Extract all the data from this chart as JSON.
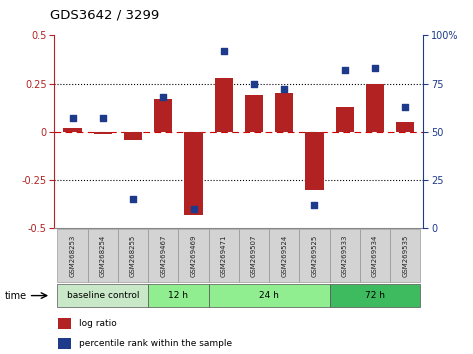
{
  "title": "GDS3642 / 3299",
  "samples": [
    "GSM268253",
    "GSM268254",
    "GSM268255",
    "GSM269467",
    "GSM269469",
    "GSM269471",
    "GSM269507",
    "GSM269524",
    "GSM269525",
    "GSM269533",
    "GSM269534",
    "GSM269535"
  ],
  "log_ratio": [
    0.02,
    -0.01,
    -0.04,
    0.17,
    -0.43,
    0.28,
    0.19,
    0.2,
    -0.3,
    0.13,
    0.25,
    0.05
  ],
  "percentile_rank": [
    57,
    57,
    15,
    68,
    10,
    92,
    75,
    72,
    12,
    82,
    83,
    63
  ],
  "bar_color": "#b22222",
  "dot_color": "#1e3a8a",
  "ylim_left": [
    -0.5,
    0.5
  ],
  "ylim_right": [
    0,
    100
  ],
  "yticks_left": [
    -0.5,
    -0.25,
    0,
    0.25,
    0.5
  ],
  "yticks_right": [
    0,
    25,
    50,
    75,
    100
  ],
  "groups": [
    {
      "label": "baseline control",
      "start": 0,
      "end": 3,
      "color": "#c8e8c8"
    },
    {
      "label": "12 h",
      "start": 3,
      "end": 5,
      "color": "#90ee90"
    },
    {
      "label": "24 h",
      "start": 5,
      "end": 9,
      "color": "#90ee90"
    },
    {
      "label": "72 h",
      "start": 9,
      "end": 12,
      "color": "#3dbb5e"
    }
  ],
  "time_label": "time",
  "legend_items": [
    {
      "label": "log ratio",
      "color": "#b22222"
    },
    {
      "label": "percentile rank within the sample",
      "color": "#1e3a8a"
    }
  ],
  "background_color": "#ffffff"
}
